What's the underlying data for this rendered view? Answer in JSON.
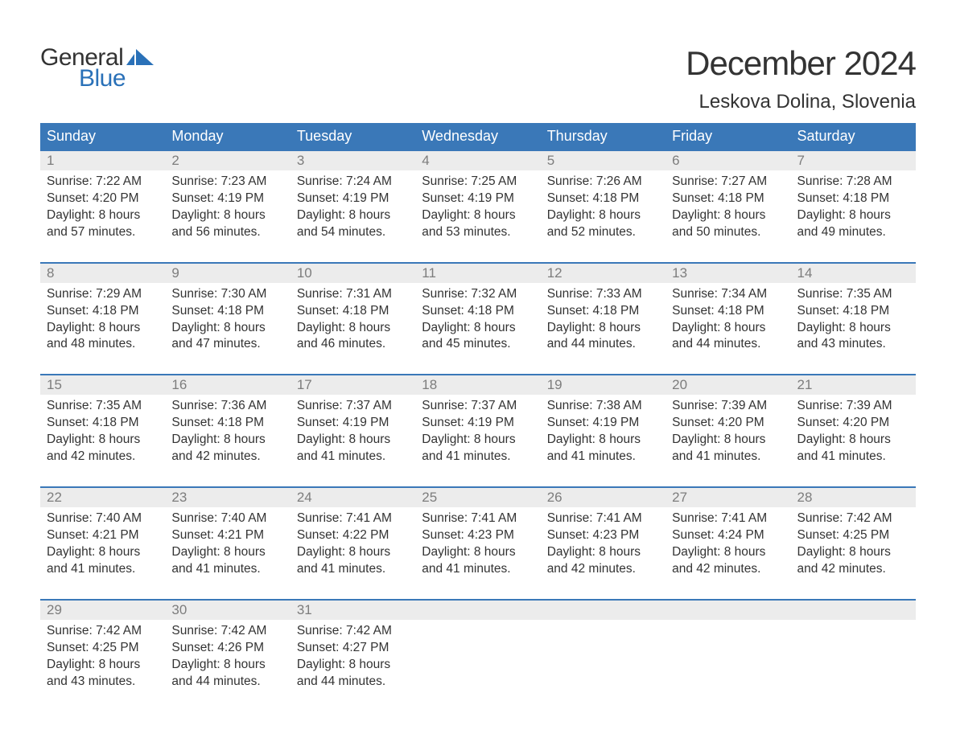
{
  "logo": {
    "text_general": "General",
    "text_blue": "Blue"
  },
  "title": "December 2024",
  "location": "Leskova Dolina, Slovenia",
  "colors": {
    "header_bg": "#3a78b8",
    "header_text": "#ffffff",
    "day_num_bg": "#ececec",
    "day_num_text": "#7d7d7d",
    "body_text": "#333333",
    "week_border": "#3a78b8",
    "logo_blue": "#2a71b8",
    "background": "#ffffff"
  },
  "typography": {
    "title_fontsize": 42,
    "location_fontsize": 24,
    "weekday_fontsize": 18,
    "daynum_fontsize": 17,
    "body_fontsize": 15.5,
    "logo_fontsize": 30
  },
  "weekdays": [
    "Sunday",
    "Monday",
    "Tuesday",
    "Wednesday",
    "Thursday",
    "Friday",
    "Saturday"
  ],
  "weeks": [
    [
      {
        "num": "1",
        "sunrise": "Sunrise: 7:22 AM",
        "sunset": "Sunset: 4:20 PM",
        "daylight1": "Daylight: 8 hours",
        "daylight2": "and 57 minutes."
      },
      {
        "num": "2",
        "sunrise": "Sunrise: 7:23 AM",
        "sunset": "Sunset: 4:19 PM",
        "daylight1": "Daylight: 8 hours",
        "daylight2": "and 56 minutes."
      },
      {
        "num": "3",
        "sunrise": "Sunrise: 7:24 AM",
        "sunset": "Sunset: 4:19 PM",
        "daylight1": "Daylight: 8 hours",
        "daylight2": "and 54 minutes."
      },
      {
        "num": "4",
        "sunrise": "Sunrise: 7:25 AM",
        "sunset": "Sunset: 4:19 PM",
        "daylight1": "Daylight: 8 hours",
        "daylight2": "and 53 minutes."
      },
      {
        "num": "5",
        "sunrise": "Sunrise: 7:26 AM",
        "sunset": "Sunset: 4:18 PM",
        "daylight1": "Daylight: 8 hours",
        "daylight2": "and 52 minutes."
      },
      {
        "num": "6",
        "sunrise": "Sunrise: 7:27 AM",
        "sunset": "Sunset: 4:18 PM",
        "daylight1": "Daylight: 8 hours",
        "daylight2": "and 50 minutes."
      },
      {
        "num": "7",
        "sunrise": "Sunrise: 7:28 AM",
        "sunset": "Sunset: 4:18 PM",
        "daylight1": "Daylight: 8 hours",
        "daylight2": "and 49 minutes."
      }
    ],
    [
      {
        "num": "8",
        "sunrise": "Sunrise: 7:29 AM",
        "sunset": "Sunset: 4:18 PM",
        "daylight1": "Daylight: 8 hours",
        "daylight2": "and 48 minutes."
      },
      {
        "num": "9",
        "sunrise": "Sunrise: 7:30 AM",
        "sunset": "Sunset: 4:18 PM",
        "daylight1": "Daylight: 8 hours",
        "daylight2": "and 47 minutes."
      },
      {
        "num": "10",
        "sunrise": "Sunrise: 7:31 AM",
        "sunset": "Sunset: 4:18 PM",
        "daylight1": "Daylight: 8 hours",
        "daylight2": "and 46 minutes."
      },
      {
        "num": "11",
        "sunrise": "Sunrise: 7:32 AM",
        "sunset": "Sunset: 4:18 PM",
        "daylight1": "Daylight: 8 hours",
        "daylight2": "and 45 minutes."
      },
      {
        "num": "12",
        "sunrise": "Sunrise: 7:33 AM",
        "sunset": "Sunset: 4:18 PM",
        "daylight1": "Daylight: 8 hours",
        "daylight2": "and 44 minutes."
      },
      {
        "num": "13",
        "sunrise": "Sunrise: 7:34 AM",
        "sunset": "Sunset: 4:18 PM",
        "daylight1": "Daylight: 8 hours",
        "daylight2": "and 44 minutes."
      },
      {
        "num": "14",
        "sunrise": "Sunrise: 7:35 AM",
        "sunset": "Sunset: 4:18 PM",
        "daylight1": "Daylight: 8 hours",
        "daylight2": "and 43 minutes."
      }
    ],
    [
      {
        "num": "15",
        "sunrise": "Sunrise: 7:35 AM",
        "sunset": "Sunset: 4:18 PM",
        "daylight1": "Daylight: 8 hours",
        "daylight2": "and 42 minutes."
      },
      {
        "num": "16",
        "sunrise": "Sunrise: 7:36 AM",
        "sunset": "Sunset: 4:18 PM",
        "daylight1": "Daylight: 8 hours",
        "daylight2": "and 42 minutes."
      },
      {
        "num": "17",
        "sunrise": "Sunrise: 7:37 AM",
        "sunset": "Sunset: 4:19 PM",
        "daylight1": "Daylight: 8 hours",
        "daylight2": "and 41 minutes."
      },
      {
        "num": "18",
        "sunrise": "Sunrise: 7:37 AM",
        "sunset": "Sunset: 4:19 PM",
        "daylight1": "Daylight: 8 hours",
        "daylight2": "and 41 minutes."
      },
      {
        "num": "19",
        "sunrise": "Sunrise: 7:38 AM",
        "sunset": "Sunset: 4:19 PM",
        "daylight1": "Daylight: 8 hours",
        "daylight2": "and 41 minutes."
      },
      {
        "num": "20",
        "sunrise": "Sunrise: 7:39 AM",
        "sunset": "Sunset: 4:20 PM",
        "daylight1": "Daylight: 8 hours",
        "daylight2": "and 41 minutes."
      },
      {
        "num": "21",
        "sunrise": "Sunrise: 7:39 AM",
        "sunset": "Sunset: 4:20 PM",
        "daylight1": "Daylight: 8 hours",
        "daylight2": "and 41 minutes."
      }
    ],
    [
      {
        "num": "22",
        "sunrise": "Sunrise: 7:40 AM",
        "sunset": "Sunset: 4:21 PM",
        "daylight1": "Daylight: 8 hours",
        "daylight2": "and 41 minutes."
      },
      {
        "num": "23",
        "sunrise": "Sunrise: 7:40 AM",
        "sunset": "Sunset: 4:21 PM",
        "daylight1": "Daylight: 8 hours",
        "daylight2": "and 41 minutes."
      },
      {
        "num": "24",
        "sunrise": "Sunrise: 7:41 AM",
        "sunset": "Sunset: 4:22 PM",
        "daylight1": "Daylight: 8 hours",
        "daylight2": "and 41 minutes."
      },
      {
        "num": "25",
        "sunrise": "Sunrise: 7:41 AM",
        "sunset": "Sunset: 4:23 PM",
        "daylight1": "Daylight: 8 hours",
        "daylight2": "and 41 minutes."
      },
      {
        "num": "26",
        "sunrise": "Sunrise: 7:41 AM",
        "sunset": "Sunset: 4:23 PM",
        "daylight1": "Daylight: 8 hours",
        "daylight2": "and 42 minutes."
      },
      {
        "num": "27",
        "sunrise": "Sunrise: 7:41 AM",
        "sunset": "Sunset: 4:24 PM",
        "daylight1": "Daylight: 8 hours",
        "daylight2": "and 42 minutes."
      },
      {
        "num": "28",
        "sunrise": "Sunrise: 7:42 AM",
        "sunset": "Sunset: 4:25 PM",
        "daylight1": "Daylight: 8 hours",
        "daylight2": "and 42 minutes."
      }
    ],
    [
      {
        "num": "29",
        "sunrise": "Sunrise: 7:42 AM",
        "sunset": "Sunset: 4:25 PM",
        "daylight1": "Daylight: 8 hours",
        "daylight2": "and 43 minutes."
      },
      {
        "num": "30",
        "sunrise": "Sunrise: 7:42 AM",
        "sunset": "Sunset: 4:26 PM",
        "daylight1": "Daylight: 8 hours",
        "daylight2": "and 44 minutes."
      },
      {
        "num": "31",
        "sunrise": "Sunrise: 7:42 AM",
        "sunset": "Sunset: 4:27 PM",
        "daylight1": "Daylight: 8 hours",
        "daylight2": "and 44 minutes."
      },
      {
        "empty": true
      },
      {
        "empty": true
      },
      {
        "empty": true
      },
      {
        "empty": true
      }
    ]
  ]
}
